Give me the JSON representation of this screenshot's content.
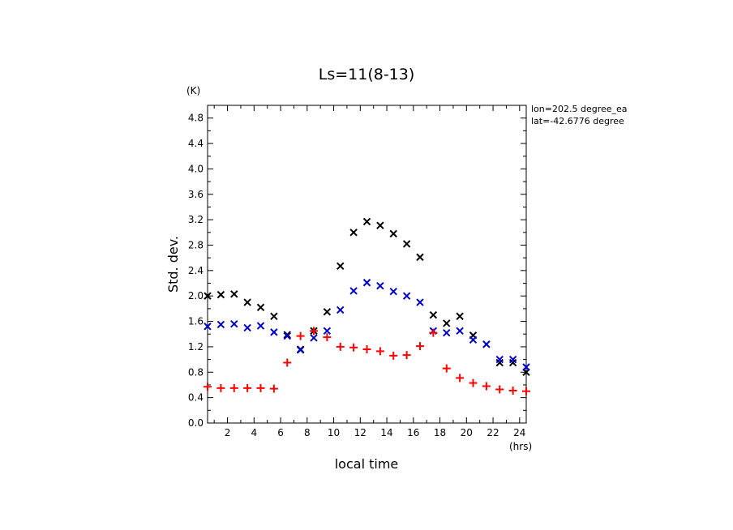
{
  "chart_data": {
    "type": "scatter",
    "title": "Ls=11(8-13)",
    "xlabel": "local time",
    "ylabel": "Std. dev.",
    "x_unit": "(hrs)",
    "y_unit": "(K)",
    "xlim": [
      0.5,
      24.5
    ],
    "ylim": [
      0,
      5.0
    ],
    "x_ticks": [
      2,
      4,
      6,
      8,
      10,
      12,
      14,
      16,
      18,
      20,
      22,
      24
    ],
    "x_tick_labels": [
      "2",
      "4",
      "6",
      "8",
      "10",
      "12",
      "14",
      "16",
      "18",
      "20",
      "22",
      "24"
    ],
    "y_ticks": [
      0,
      0.4,
      0.8,
      1.2,
      1.6,
      2.0,
      2.4,
      2.8,
      3.2,
      3.6,
      4.0,
      4.4,
      4.8
    ],
    "y_tick_labels": [
      "0.0",
      "0.4",
      "0.8",
      "1.2",
      "1.6",
      "2.0",
      "2.4",
      "2.8",
      "3.2",
      "3.6",
      "4.0",
      "4.4",
      "4.8"
    ],
    "annotations": [
      "lon=202.5 degree_ea",
      "lat=-42.6776 degree"
    ],
    "x": [
      0.5,
      1.5,
      2.5,
      3.5,
      4.5,
      5.5,
      6.5,
      7.5,
      8.5,
      9.5,
      10.5,
      11.5,
      12.5,
      13.5,
      14.5,
      15.5,
      16.5,
      17.5,
      18.5,
      19.5,
      20.5,
      21.5,
      22.5,
      23.5,
      24.5
    ],
    "series": [
      {
        "marker": "x",
        "color": "#000000",
        "values": [
          2.0,
          2.02,
          2.03,
          1.9,
          1.82,
          1.68,
          1.39,
          1.16,
          1.45,
          1.75,
          2.47,
          3.0,
          3.17,
          3.11,
          2.98,
          2.82,
          2.61,
          1.7,
          1.57,
          1.68,
          1.38,
          1.24,
          0.95,
          0.95,
          0.8
        ]
      },
      {
        "marker": "x",
        "color": "#0000cc",
        "values": [
          1.52,
          1.55,
          1.56,
          1.5,
          1.53,
          1.43,
          1.37,
          1.15,
          1.34,
          1.45,
          1.78,
          2.08,
          2.21,
          2.16,
          2.07,
          2.0,
          1.9,
          1.45,
          1.42,
          1.45,
          1.31,
          1.24,
          1.0,
          1.0,
          0.88
        ]
      },
      {
        "marker": "+",
        "color": "#ff0000",
        "values": [
          0.57,
          0.55,
          0.55,
          0.55,
          0.55,
          0.54,
          0.95,
          1.37,
          1.45,
          1.35,
          1.2,
          1.19,
          1.16,
          1.13,
          1.06,
          1.07,
          1.21,
          1.42,
          0.86,
          0.71,
          0.63,
          0.58,
          0.53,
          0.51,
          0.5
        ]
      }
    ],
    "grid": false,
    "legend": "none"
  }
}
